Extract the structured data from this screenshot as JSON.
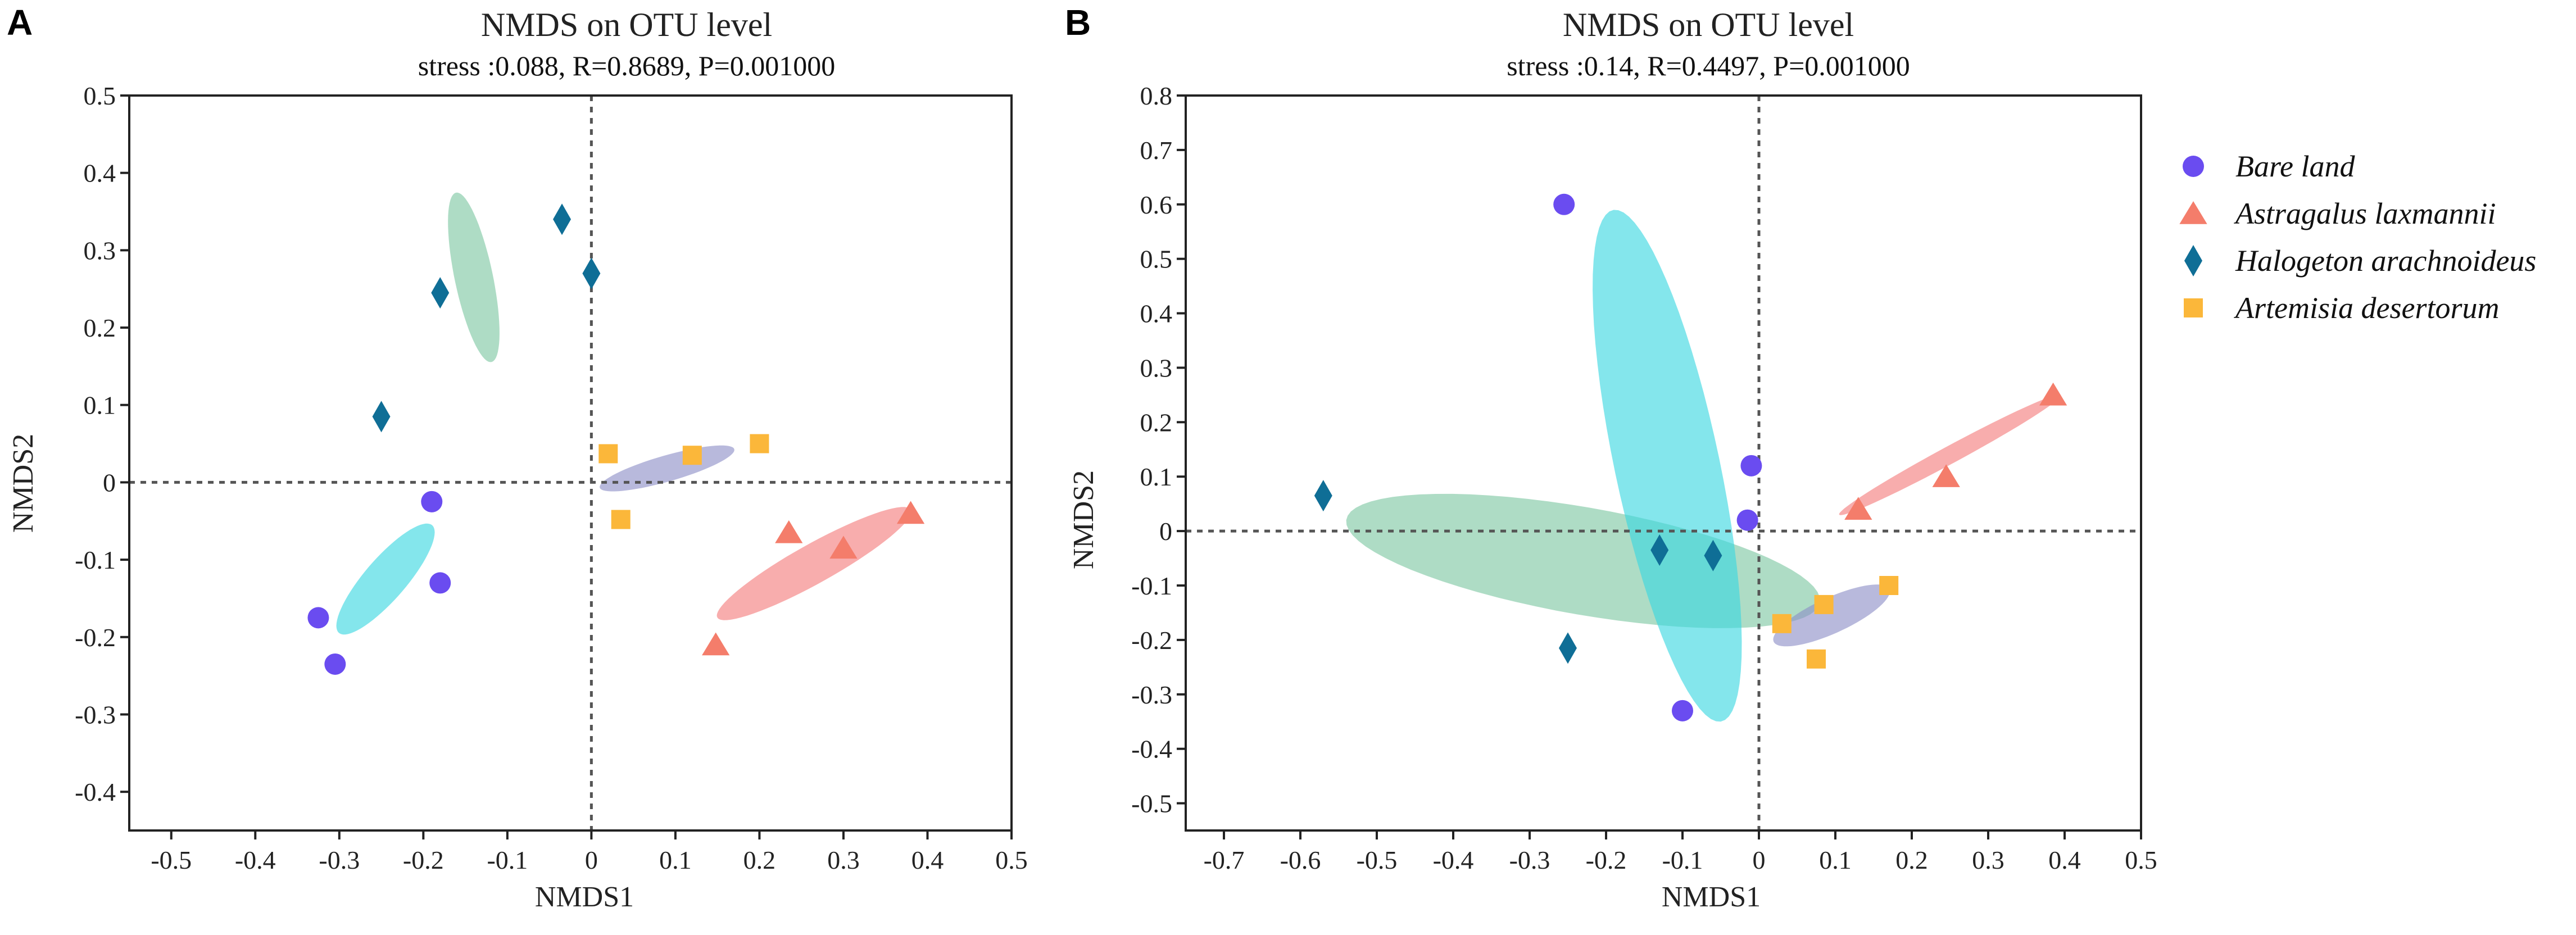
{
  "colors": {
    "bare_land": "#6a4cf0",
    "astragalus": "#f47d6b",
    "halogeton": "#0f6e96",
    "artemisia": "#fbb73a",
    "ellipse_bare": "#39d7e0",
    "ellipse_astragalus": "#f47a7a",
    "ellipse_halogeton": "#7cc7a2",
    "ellipse_artemisia": "#8d8ec7"
  },
  "legend": {
    "items": [
      {
        "key": "bare_land",
        "label": "Bare land",
        "marker": "circle"
      },
      {
        "key": "astragalus",
        "label": "Astragalus laxmannii",
        "marker": "triangle"
      },
      {
        "key": "halogeton",
        "label": "Halogeton arachnoideus",
        "marker": "diamond"
      },
      {
        "key": "artemisia",
        "label": "Artemisia desertorum",
        "marker": "square"
      }
    ]
  },
  "chart_data": [
    {
      "panel_label": "A",
      "type": "scatter",
      "title": "NMDS on OTU level",
      "subtitle": "stress :0.088, R=0.8689, P=0.001000",
      "xlabel": "NMDS1",
      "ylabel": "NMDS2",
      "xlim": [
        -0.55,
        0.5
      ],
      "ylim": [
        -0.45,
        0.5
      ],
      "xticks": [
        -0.5,
        -0.4,
        -0.3,
        -0.2,
        -0.1,
        0,
        0.1,
        0.2,
        0.3,
        0.4,
        0.5
      ],
      "yticks": [
        -0.4,
        -0.3,
        -0.2,
        -0.1,
        0,
        0.1,
        0.2,
        0.3,
        0.4,
        0.5
      ],
      "series": [
        {
          "key": "bare_land",
          "points": [
            [
              -0.19,
              -0.025
            ],
            [
              -0.18,
              -0.13
            ],
            [
              -0.325,
              -0.175
            ],
            [
              -0.305,
              -0.235
            ]
          ]
        },
        {
          "key": "astragalus",
          "points": [
            [
              0.235,
              -0.065
            ],
            [
              0.3,
              -0.085
            ],
            [
              0.38,
              -0.04
            ],
            [
              0.148,
              -0.21
            ]
          ]
        },
        {
          "key": "halogeton",
          "points": [
            [
              -0.035,
              0.34
            ],
            [
              -0.18,
              0.245
            ],
            [
              0.0,
              0.27
            ],
            [
              -0.25,
              0.085
            ]
          ]
        },
        {
          "key": "artemisia",
          "points": [
            [
              0.02,
              0.037
            ],
            [
              0.12,
              0.035
            ],
            [
              0.2,
              0.05
            ],
            [
              0.035,
              -0.048
            ]
          ]
        }
      ],
      "ellipses": [
        {
          "key": "halogeton",
          "cx": -0.14,
          "cy": 0.265,
          "p1": [
            -0.0125,
            0.105
          ],
          "p2": [
            0.028,
            -0.0315
          ]
        },
        {
          "key": "artemisia",
          "cx": 0.09,
          "cy": 0.018,
          "p1": [
            0.08,
            0.025
          ],
          "p2": [
            -0.005,
            0.016
          ]
        },
        {
          "key": "bare_land",
          "cx": -0.245,
          "cy": -0.125,
          "p1": [
            0.055,
            0.07
          ],
          "p2": [
            0.02,
            -0.0157
          ]
        },
        {
          "key": "astragalus",
          "cx": 0.265,
          "cy": -0.105,
          "p1": [
            0.115,
            0.07
          ],
          "p2": [
            0.013,
            -0.0213
          ]
        }
      ]
    },
    {
      "panel_label": "B",
      "type": "scatter",
      "title": "NMDS on OTU level",
      "subtitle": "stress :0.14, R=0.4497, P=0.001000",
      "xlabel": "NMDS1",
      "ylabel": "NMDS2",
      "xlim": [
        -0.75,
        0.5
      ],
      "ylim": [
        -0.55,
        0.8
      ],
      "xticks": [
        -0.7,
        -0.6,
        -0.5,
        -0.4,
        -0.3,
        -0.2,
        -0.1,
        0,
        0.1,
        0.2,
        0.3,
        0.4,
        0.5
      ],
      "yticks": [
        -0.5,
        -0.4,
        -0.3,
        -0.2,
        -0.1,
        0,
        0.1,
        0.2,
        0.3,
        0.4,
        0.5,
        0.6,
        0.7,
        0.8
      ],
      "series": [
        {
          "key": "bare_land",
          "points": [
            [
              -0.255,
              0.6
            ],
            [
              -0.01,
              0.12
            ],
            [
              -0.015,
              0.02
            ],
            [
              -0.1,
              -0.33
            ]
          ]
        },
        {
          "key": "astragalus",
          "points": [
            [
              0.385,
              0.25
            ],
            [
              0.245,
              0.1
            ],
            [
              0.13,
              0.04
            ]
          ]
        },
        {
          "key": "halogeton",
          "points": [
            [
              -0.57,
              0.065
            ],
            [
              -0.13,
              -0.035
            ],
            [
              -0.06,
              -0.045
            ],
            [
              -0.25,
              -0.215
            ]
          ]
        },
        {
          "key": "artemisia",
          "points": [
            [
              0.17,
              -0.1
            ],
            [
              0.085,
              -0.135
            ],
            [
              0.03,
              -0.17
            ],
            [
              0.075,
              -0.235
            ]
          ]
        }
      ],
      "ellipses": [
        {
          "key": "halogeton",
          "cx": -0.23,
          "cy": -0.055,
          "p1": [
            0.31,
            -0.075
          ],
          "p2": [
            0.008,
            0.098
          ]
        },
        {
          "key": "bare_land",
          "cx": -0.12,
          "cy": 0.12,
          "p1": [
            0.07,
            -0.47
          ],
          "p2": [
            0.068,
            0.0135
          ]
        },
        {
          "key": "artemisia",
          "cx": 0.095,
          "cy": -0.155,
          "p1": [
            0.075,
            0.05
          ],
          "p2": [
            -0.014,
            0.027
          ]
        },
        {
          "key": "astragalus",
          "cx": 0.25,
          "cy": 0.14,
          "p1": [
            0.145,
            0.11
          ],
          "p2": [
            -0.007,
            0.013
          ]
        }
      ]
    }
  ]
}
